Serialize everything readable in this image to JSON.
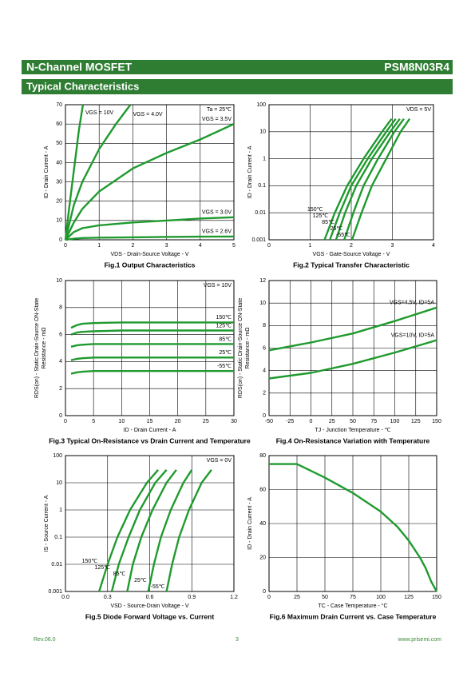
{
  "header": {
    "title": "N-Channel MOSFET",
    "part": "PSM8N03R4"
  },
  "section": "Typical Characteristics",
  "chart_data": [
    {
      "type": "line",
      "title": "Fig.1 Output Characteristics",
      "xlabel": "VDS - Drain-Source Voltage - V",
      "ylabel": [
        "ID - Drain Current - A"
      ],
      "xlim": [
        0,
        5
      ],
      "xticks": [
        0,
        1,
        2,
        3,
        4,
        5
      ],
      "ylim": [
        0,
        70
      ],
      "yticks": [
        0,
        10,
        20,
        30,
        40,
        50,
        60,
        70
      ],
      "ylog": false,
      "grid": true,
      "annotation": "Ta = 25℃",
      "series": [
        {
          "name": "VGS = 10V",
          "color": "#1f9a2e",
          "x": [
            0,
            0.1,
            0.2,
            0.3,
            0.4,
            0.52
          ],
          "values": [
            0,
            15,
            29,
            43,
            57,
            70
          ]
        },
        {
          "name": "VGS = 4.0V",
          "color": "#1f9a2e",
          "x": [
            0,
            0.25,
            0.5,
            1,
            1.5,
            1.93
          ],
          "values": [
            0,
            18,
            30,
            47,
            60,
            70
          ]
        },
        {
          "name": "VGS = 3.5V",
          "color": "#1f9a2e",
          "x": [
            0,
            0.25,
            0.5,
            1,
            2,
            3,
            4,
            5
          ],
          "values": [
            0,
            9,
            16,
            25,
            37,
            45,
            52,
            60
          ]
        },
        {
          "name": "VGS = 3.0V",
          "color": "#1f9a2e",
          "x": [
            0,
            0.25,
            0.5,
            1,
            2,
            3,
            4,
            5
          ],
          "values": [
            0,
            4,
            6,
            7.5,
            9,
            10,
            11,
            11.7
          ]
        },
        {
          "name": "VGS = 2.6V",
          "color": "#1f9a2e",
          "x": [
            0,
            0.25,
            0.5,
            1,
            2,
            3,
            4,
            5
          ],
          "values": [
            0,
            0.6,
            0.9,
            1.1,
            1.3,
            1.5,
            1.6,
            1.7
          ]
        }
      ]
    },
    {
      "type": "line",
      "title": "Fig.2 Typical Transfer Characteristic",
      "xlabel": "VGS - Gate-Source Voltage - V",
      "ylabel": [
        "ID - Drain Current - A"
      ],
      "xlim": [
        0,
        4
      ],
      "xticks": [
        0,
        1,
        2,
        3,
        4
      ],
      "ylim": [
        0.001,
        100
      ],
      "yticks": [
        0.001,
        0.01,
        0.1,
        1,
        10,
        100
      ],
      "ylog": true,
      "grid": true,
      "annotation": "VDS = 5V",
      "series": [
        {
          "name": "150℃",
          "color": "#1f9a2e",
          "x": [
            1.35,
            1.6,
            1.9,
            2.3,
            2.75,
            2.98
          ],
          "values": [
            0.001,
            0.01,
            0.1,
            1,
            10,
            30
          ]
        },
        {
          "name": "125℃",
          "color": "#1f9a2e",
          "x": [
            1.48,
            1.72,
            2.0,
            2.4,
            2.85,
            3.08
          ],
          "values": [
            0.001,
            0.01,
            0.1,
            1,
            10,
            30
          ]
        },
        {
          "name": "85℃",
          "color": "#1f9a2e",
          "x": [
            1.63,
            1.85,
            2.12,
            2.5,
            2.95,
            3.18
          ],
          "values": [
            0.001,
            0.01,
            0.1,
            1,
            10,
            30
          ]
        },
        {
          "name": "25℃",
          "color": "#1f9a2e",
          "x": [
            1.83,
            2.05,
            2.3,
            2.65,
            3.05,
            3.28
          ],
          "values": [
            0.001,
            0.01,
            0.1,
            1,
            10,
            30
          ]
        },
        {
          "name": "-55℃",
          "color": "#1f9a2e",
          "x": [
            2.02,
            2.25,
            2.5,
            2.85,
            3.2,
            3.42
          ],
          "values": [
            0.001,
            0.01,
            0.1,
            1,
            10,
            30
          ]
        }
      ]
    },
    {
      "type": "line",
      "title": "Fig.3 Typical On-Resistance  vs Drain Current and Temperature",
      "xlabel": "ID - Drain Current - A",
      "ylabel": [
        "RDS(on) - Static Drain-Source ON-State",
        "Resistance - mΩ"
      ],
      "xlim": [
        0,
        30
      ],
      "xticks": [
        0,
        5,
        10,
        15,
        20,
        25,
        30
      ],
      "ylim": [
        0,
        10
      ],
      "yticks": [
        0,
        2,
        4,
        6,
        8,
        10
      ],
      "ylog": false,
      "grid": true,
      "annotation": "VGS = 10V",
      "series": [
        {
          "name": "150℃",
          "color": "#1f9a2e",
          "x": [
            1,
            2,
            3,
            5,
            10,
            15,
            20,
            25,
            30
          ],
          "values": [
            6.5,
            6.7,
            6.8,
            6.85,
            6.9,
            6.9,
            6.9,
            6.9,
            6.9
          ]
        },
        {
          "name": "125℃",
          "color": "#1f9a2e",
          "x": [
            1,
            2,
            3,
            5,
            10,
            15,
            20,
            25,
            30
          ],
          "values": [
            6.0,
            6.15,
            6.2,
            6.25,
            6.3,
            6.3,
            6.3,
            6.3,
            6.3
          ]
        },
        {
          "name": "85℃",
          "color": "#1f9a2e",
          "x": [
            1,
            2,
            3,
            5,
            10,
            15,
            20,
            25,
            30
          ],
          "values": [
            5.1,
            5.2,
            5.25,
            5.3,
            5.3,
            5.3,
            5.3,
            5.3,
            5.3
          ]
        },
        {
          "name": "25℃",
          "color": "#1f9a2e",
          "x": [
            1,
            2,
            3,
            5,
            10,
            15,
            20,
            25,
            30
          ],
          "values": [
            4.1,
            4.2,
            4.25,
            4.3,
            4.3,
            4.3,
            4.3,
            4.3,
            4.3
          ]
        },
        {
          "name": "-55℃",
          "color": "#1f9a2e",
          "x": [
            1,
            2,
            3,
            5,
            10,
            15,
            20,
            25,
            30
          ],
          "values": [
            3.1,
            3.2,
            3.25,
            3.3,
            3.3,
            3.3,
            3.3,
            3.3,
            3.3
          ]
        }
      ]
    },
    {
      "type": "line",
      "title": "Fig.4 On-Resistance Variation with Temperature",
      "xlabel": "TJ - Junction Temperature - ℃",
      "ylabel": [
        "RDS(on) - Static Drain-Source ON-State",
        "Resistance - mΩ"
      ],
      "xlim": [
        -50,
        150
      ],
      "xticks": [
        -50,
        -25,
        0,
        25,
        50,
        75,
        100,
        125,
        150
      ],
      "ylim": [
        0,
        12
      ],
      "yticks": [
        0,
        2,
        4,
        6,
        8,
        10,
        12
      ],
      "ylog": false,
      "grid": true,
      "series": [
        {
          "name": "VGS=4.5V, ID=5A",
          "color": "#1f9a2e",
          "x": [
            -50,
            0,
            50,
            100,
            150
          ],
          "values": [
            5.8,
            6.5,
            7.3,
            8.4,
            9.6
          ]
        },
        {
          "name": "VGS=10V, ID=5A",
          "color": "#1f9a2e",
          "x": [
            -50,
            0,
            50,
            100,
            150
          ],
          "values": [
            3.3,
            3.8,
            4.6,
            5.6,
            6.7
          ]
        }
      ]
    },
    {
      "type": "line",
      "title": "Fig.5 Diode Forward Voltage vs. Current",
      "xlabel": "VSD - Source-Drain Voltage - V",
      "ylabel": [
        "IS - Source Current - A"
      ],
      "xlim": [
        0,
        1.2
      ],
      "xticks": [
        {
          "value": 0,
          "label": "0.0"
        },
        0.3,
        0.6,
        0.9,
        1.2
      ],
      "ylim": [
        0.001,
        100
      ],
      "yticks": [
        0.001,
        0.01,
        0.1,
        1,
        10,
        100
      ],
      "ylog": true,
      "grid": true,
      "annotation": "VGS = 0V",
      "series": [
        {
          "name": "150℃",
          "color": "#1f9a2e",
          "x": [
            0.24,
            0.3,
            0.37,
            0.46,
            0.58,
            0.66
          ],
          "values": [
            0.001,
            0.01,
            0.1,
            1,
            10,
            30
          ]
        },
        {
          "name": "125℃",
          "color": "#1f9a2e",
          "x": [
            0.33,
            0.38,
            0.45,
            0.53,
            0.64,
            0.72
          ],
          "values": [
            0.001,
            0.01,
            0.1,
            1,
            10,
            30
          ]
        },
        {
          "name": "85℃",
          "color": "#1f9a2e",
          "x": [
            0.44,
            0.48,
            0.54,
            0.62,
            0.72,
            0.79
          ],
          "values": [
            0.001,
            0.01,
            0.1,
            1,
            10,
            30
          ]
        },
        {
          "name": "25℃",
          "color": "#1f9a2e",
          "x": [
            0.59,
            0.63,
            0.68,
            0.75,
            0.84,
            0.9
          ],
          "values": [
            0.001,
            0.01,
            0.1,
            1,
            10,
            30
          ]
        },
        {
          "name": "-55℃",
          "color": "#1f9a2e",
          "x": [
            0.72,
            0.76,
            0.81,
            0.88,
            0.97,
            1.04
          ],
          "values": [
            0.001,
            0.01,
            0.1,
            1,
            10,
            30
          ]
        }
      ]
    },
    {
      "type": "line",
      "title": "Fig.6 Maximum Drain Current vs. Case Temperature",
      "xlabel": "TC - Case Temperature - °C",
      "ylabel": [
        "ID - Drain Current - A"
      ],
      "xlim": [
        0,
        150
      ],
      "xticks": [
        0,
        25,
        50,
        75,
        100,
        125,
        150
      ],
      "ylim": [
        0,
        80
      ],
      "yticks": [
        0,
        20,
        40,
        60,
        80
      ],
      "ylog": false,
      "grid": true,
      "series": [
        {
          "color": "#1f9a2e",
          "x": [
            0,
            25,
            50,
            75,
            100,
            115,
            125,
            135,
            140,
            145,
            150
          ],
          "values": [
            75,
            75,
            67,
            58,
            47,
            38,
            30,
            20,
            14,
            6,
            0
          ]
        }
      ]
    }
  ],
  "footer": {
    "rev": "Rev.06.0",
    "page": "3",
    "url": "www.prisemi.com"
  }
}
